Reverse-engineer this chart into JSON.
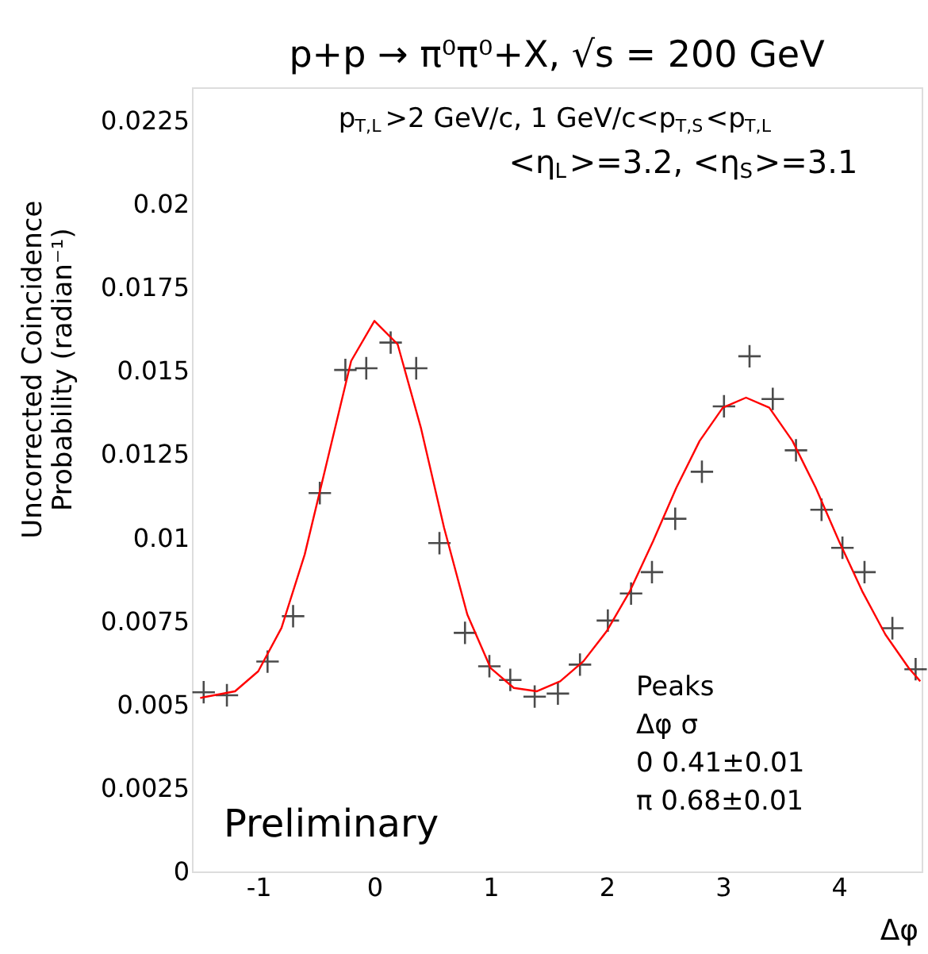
{
  "chart_data": {
    "type": "scatter",
    "title": "p+p → π⁰π⁰+X, √s = 200 GeV",
    "subtitle": "p$_{T,L}$>2 GeV/c, 1 GeV/c<p$_{T,S}$<p$_{T,L}$",
    "annotations": [
      "<η$_{L}$>=3.2, <η$_{S}$>=3.1",
      "Preliminary",
      "Peaks",
      "Δφ    σ",
      "0     0.41±0.01",
      "π     0.68±0.01"
    ],
    "xlabel": "Δφ",
    "ylabel": "Uncorrected Coincidence\nProbability (radian⁻¹)",
    "xlim": [
      -1.571,
      4.712
    ],
    "xticks": [
      -1,
      0,
      1,
      2,
      3,
      4
    ],
    "ylim": [
      0,
      0.0235
    ],
    "yticks": [
      0,
      0.0025,
      0.005,
      0.0075,
      0.01,
      0.0125,
      0.015,
      0.0175,
      0.02,
      0.0225
    ],
    "grid": false,
    "series": [
      {
        "type": "scatter",
        "color": "#000000",
        "marker": "cross",
        "x": [
          -1.47,
          -1.27,
          -0.92,
          -0.7,
          -0.47,
          -0.25,
          -0.07,
          0.14,
          0.36,
          0.56,
          0.78,
          0.99,
          1.17,
          1.38,
          1.58,
          1.77,
          2.01,
          2.21,
          2.39,
          2.59,
          2.82,
          3.01,
          3.23,
          3.43,
          3.63,
          3.85,
          4.03,
          4.22,
          4.46,
          4.66
        ],
        "values": [
          0.00537,
          0.00528,
          0.00629,
          0.00765,
          0.01134,
          0.01503,
          0.01508,
          0.01585,
          0.01508,
          0.00984,
          0.00715,
          0.00615,
          0.00574,
          0.00524,
          0.00533,
          0.0062,
          0.00752,
          0.00833,
          0.00897,
          0.01057,
          0.01198,
          0.01394,
          0.01544,
          0.01416,
          0.01262,
          0.01084,
          0.0097,
          0.00897,
          0.00729,
          0.00606
        ]
      },
      {
        "type": "line",
        "color": "#ff0000",
        "marker": "none",
        "line_style": "solid",
        "x": [
          -1.5,
          -1.2,
          -1.0,
          -0.8,
          -0.6,
          -0.4,
          -0.2,
          0,
          0.2,
          0.4,
          0.6,
          0.8,
          1.0,
          1.2,
          1.4,
          1.6,
          1.8,
          2.0,
          2.2,
          2.4,
          2.6,
          2.8,
          3.0,
          3.2,
          3.4,
          3.6,
          3.8,
          4.0,
          4.2,
          4.4,
          4.6,
          4.7
        ],
        "values": [
          0.0052,
          0.0054,
          0.006,
          0.0073,
          0.0095,
          0.0124,
          0.0153,
          0.0165,
          0.0158,
          0.0133,
          0.0103,
          0.0077,
          0.0061,
          0.0055,
          0.0054,
          0.0057,
          0.0063,
          0.0072,
          0.0084,
          0.0099,
          0.0115,
          0.0129,
          0.0139,
          0.0142,
          0.0139,
          0.0129,
          0.0115,
          0.0099,
          0.0084,
          0.0071,
          0.0061,
          0.0057
        ]
      }
    ]
  }
}
